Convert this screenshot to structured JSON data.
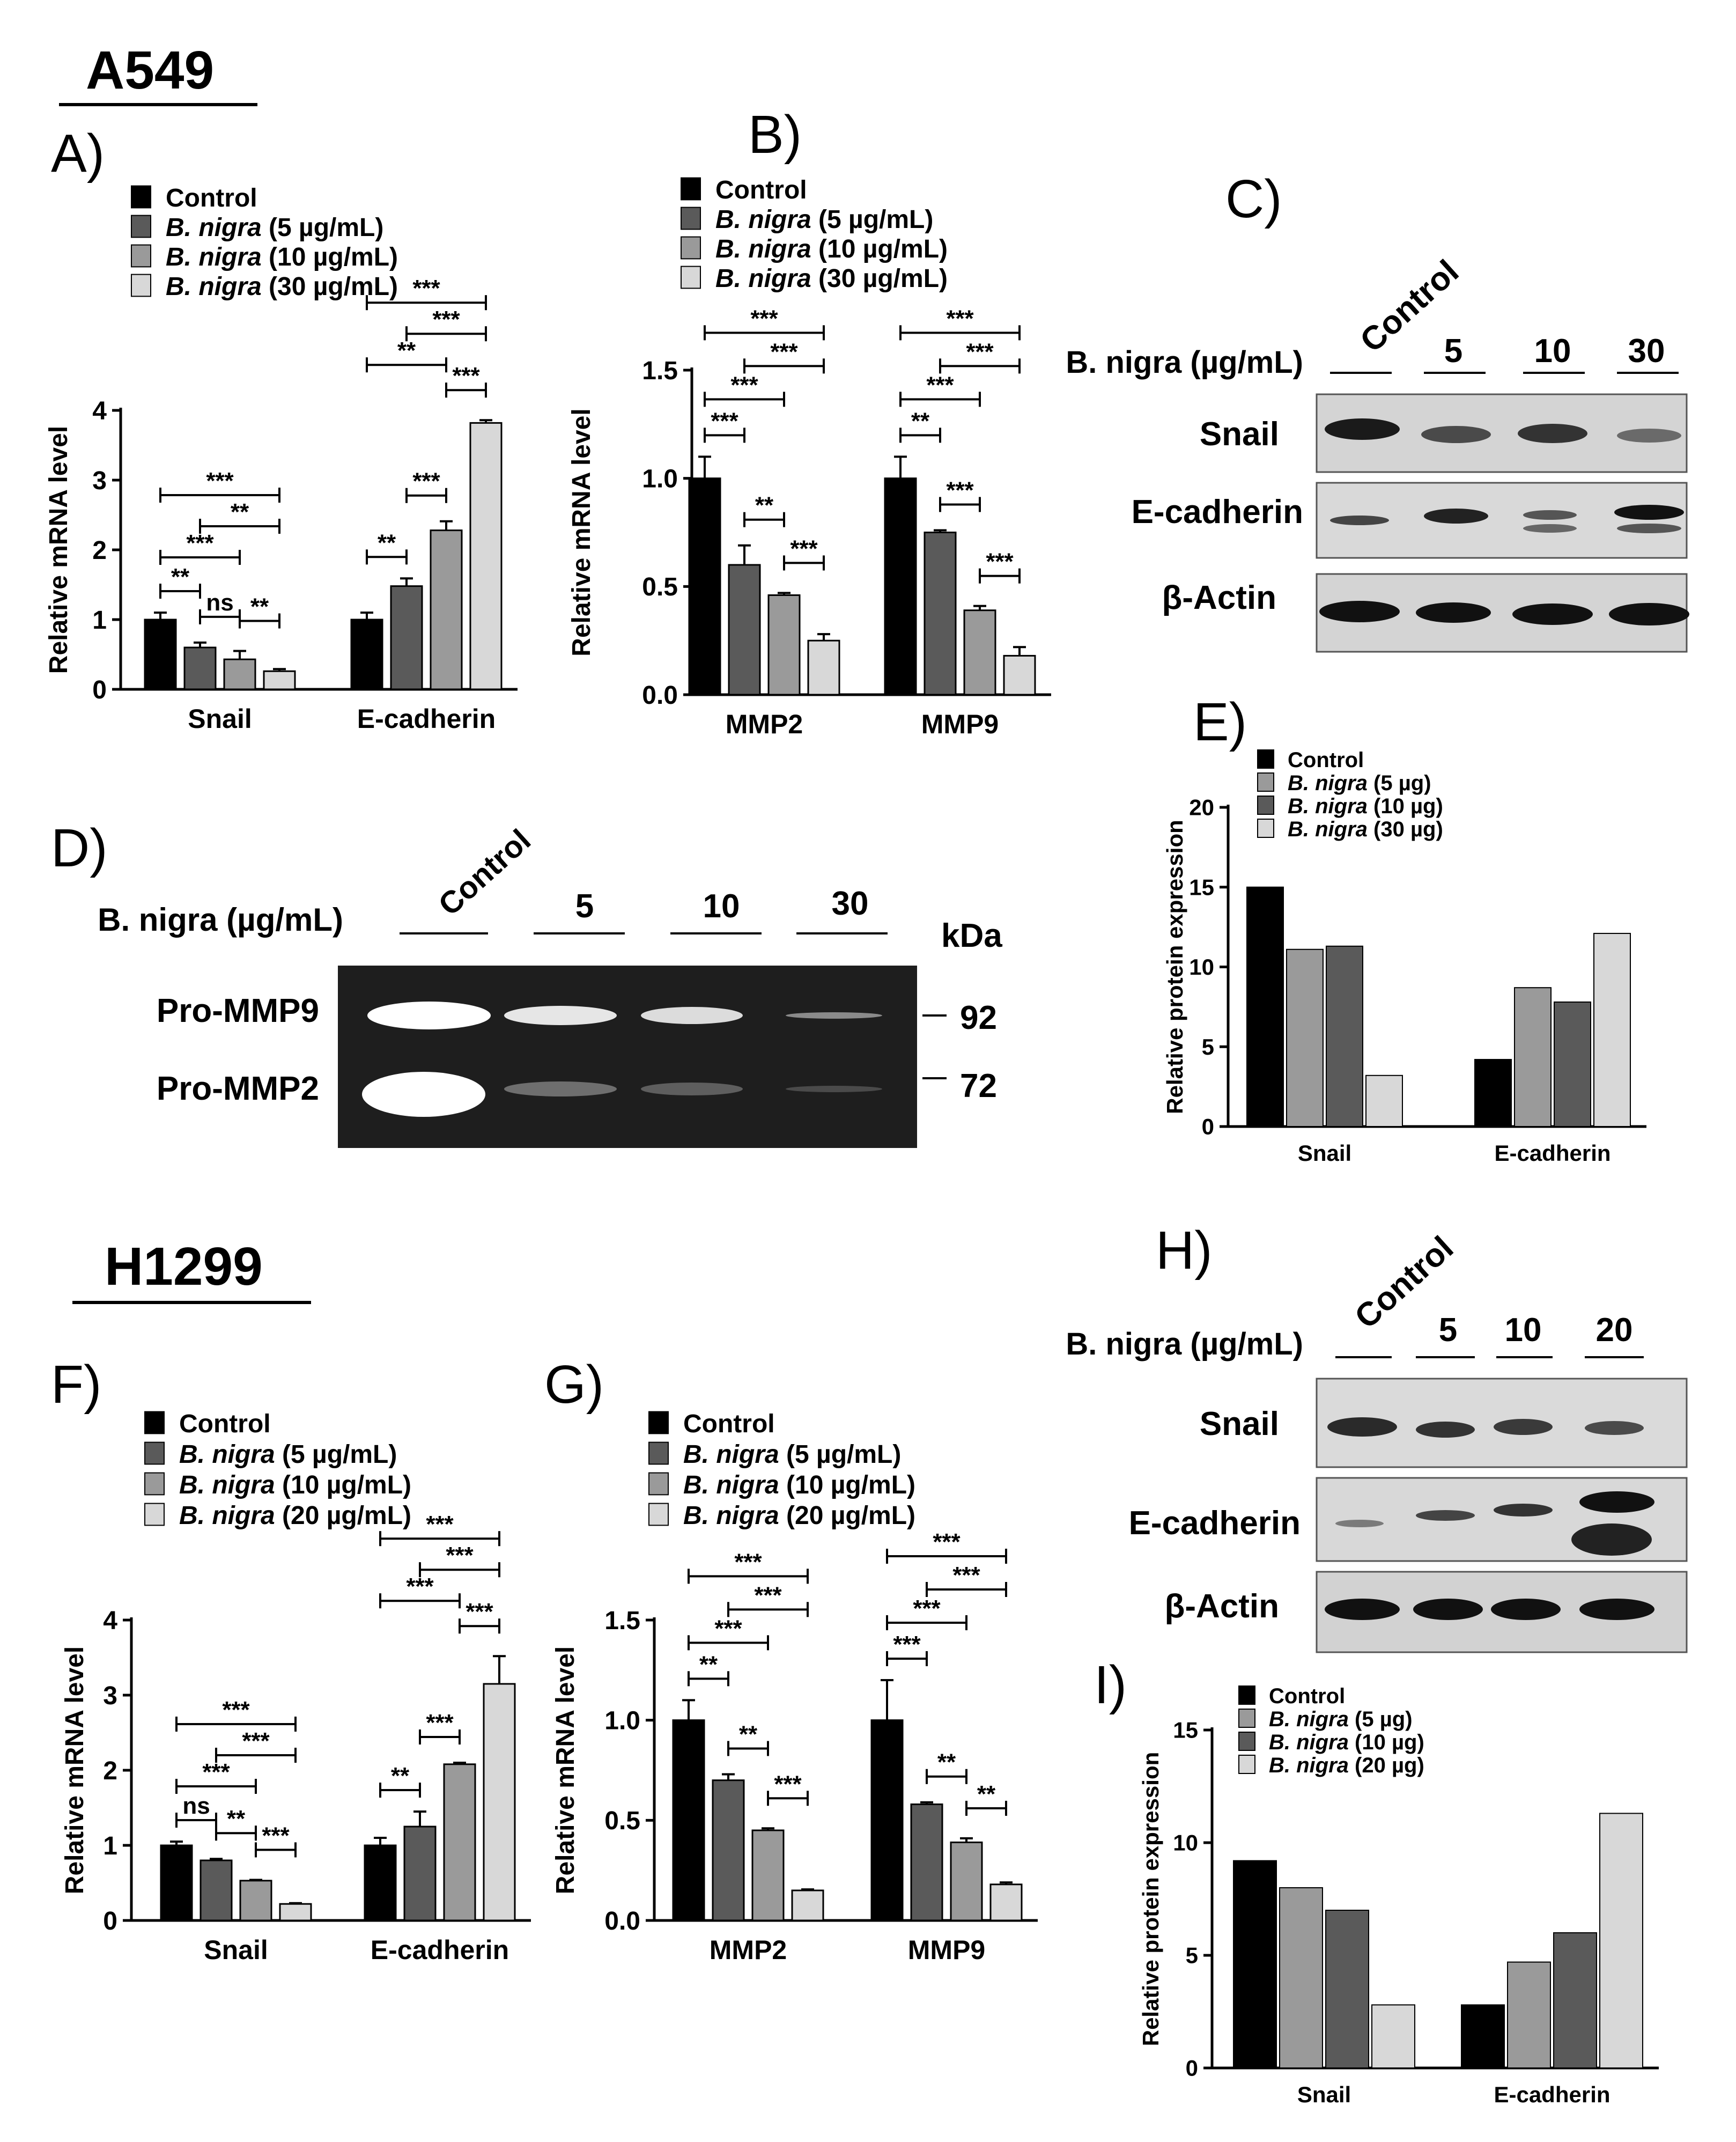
{
  "cell_line_headers": [
    "A549",
    "H1299"
  ],
  "panel_letters": [
    "A)",
    "B)",
    "C)",
    "D)",
    "E)",
    "F)",
    "G)",
    "H)",
    "I)"
  ],
  "legend_prefix": "B. nigra",
  "blot_treatment_label": "B. nigra (µg/mL)",
  "blot_lane_labels_a549": [
    "Control",
    "5",
    "10",
    "30"
  ],
  "blot_lane_labels_h1299": [
    "Control",
    "5",
    "10",
    "20"
  ],
  "blot_row_labels": [
    "Snail",
    "E-cadherin",
    "β-Actin"
  ],
  "zymo_row_labels": [
    "Pro-MMP9",
    "Pro-MMP2"
  ],
  "zymo_kda_header": "kDa",
  "zymo_kda_values": [
    "92",
    "72"
  ],
  "colors": {
    "control": "#000000",
    "dose1": "#5a5a5a",
    "dose2": "#9a9a9a",
    "dose3": "#d8d8d8",
    "blot_bg": "#d6d6d6",
    "zymo_bg": "#1e1e1e"
  },
  "chart_data": [
    {
      "id": "A",
      "type": "bar",
      "categories": [
        "Snail",
        "E-cadherin"
      ],
      "ylabel": "Relative mRNA level",
      "ylim": [
        0,
        4
      ],
      "yticks": [
        "0",
        "1",
        "2",
        "3",
        "4"
      ],
      "series": [
        {
          "name": "Control",
          "values": [
            1.0,
            1.0
          ],
          "errors": [
            0.1,
            0.1
          ]
        },
        {
          "name": "(5 µg/mL)",
          "values": [
            0.6,
            1.48
          ],
          "errors": [
            0.07,
            0.11
          ]
        },
        {
          "name": "(10 µg/mL)",
          "values": [
            0.43,
            2.28
          ],
          "errors": [
            0.12,
            0.13
          ]
        },
        {
          "name": "(30 µg/mL)",
          "values": [
            0.26,
            3.82
          ],
          "errors": [
            0.03,
            0.04
          ]
        }
      ],
      "significance": [
        "**",
        "***",
        "***",
        "ns",
        "**",
        "**",
        "**",
        "**",
        "***",
        "***",
        "***",
        "***"
      ]
    },
    {
      "id": "B",
      "type": "bar",
      "categories": [
        "MMP2",
        "MMP9"
      ],
      "ylabel": "Relative mRNA level",
      "ylim": [
        0,
        1.5
      ],
      "yticks": [
        "0.0",
        "0.5",
        "1.0",
        "1.5"
      ],
      "series": [
        {
          "name": "Control",
          "values": [
            1.0,
            1.0
          ],
          "errors": [
            0.1,
            0.1
          ]
        },
        {
          "name": "(5 µg/mL)",
          "values": [
            0.6,
            0.75
          ],
          "errors": [
            0.09,
            0.01
          ]
        },
        {
          "name": "(10 µg/mL)",
          "values": [
            0.46,
            0.39
          ],
          "errors": [
            0.01,
            0.02
          ]
        },
        {
          "name": "(30 µg/mL)",
          "values": [
            0.25,
            0.18
          ],
          "errors": [
            0.03,
            0.04
          ]
        }
      ],
      "significance": [
        "***",
        "***",
        "***",
        "**",
        "***",
        "***",
        "**",
        "***",
        "***",
        "***",
        "***",
        "***"
      ]
    },
    {
      "id": "E",
      "type": "bar",
      "categories": [
        "Snail",
        "E-cadherin"
      ],
      "ylabel": "Relative protein expression",
      "ylim": [
        0,
        20
      ],
      "yticks": [
        "0",
        "5",
        "10",
        "15",
        "20"
      ],
      "series": [
        {
          "name": "Control",
          "values": [
            15.0,
            4.2
          ]
        },
        {
          "name": "(5 µg)",
          "values": [
            11.1,
            8.7
          ]
        },
        {
          "name": "(10 µg)",
          "values": [
            11.3,
            7.8
          ]
        },
        {
          "name": "(30 µg)",
          "values": [
            3.2,
            12.1
          ]
        }
      ]
    },
    {
      "id": "F",
      "type": "bar",
      "categories": [
        "Snail",
        "E-cadherin"
      ],
      "ylabel": "Relative mRNA level",
      "ylim": [
        0,
        4
      ],
      "yticks": [
        "0",
        "1",
        "2",
        "3",
        "4"
      ],
      "series": [
        {
          "name": "Control",
          "values": [
            1.0,
            1.0
          ],
          "errors": [
            0.05,
            0.1
          ]
        },
        {
          "name": "(5 µg/mL)",
          "values": [
            0.8,
            1.25
          ],
          "errors": [
            0.02,
            0.2
          ]
        },
        {
          "name": "(10 µg/mL)",
          "values": [
            0.53,
            2.08
          ],
          "errors": [
            0.01,
            0.02
          ]
        },
        {
          "name": "(20 µg/mL)",
          "values": [
            0.22,
            3.15
          ],
          "errors": [
            0.01,
            0.37
          ]
        }
      ],
      "significance": [
        "ns",
        "***",
        "***",
        "**",
        "***",
        "***",
        "**",
        "***",
        "***",
        "***",
        "***",
        "***"
      ]
    },
    {
      "id": "G",
      "type": "bar",
      "categories": [
        "MMP2",
        "MMP9"
      ],
      "ylabel": "Relative mRNA level",
      "ylim": [
        0,
        1.5
      ],
      "yticks": [
        "0.0",
        "0.5",
        "1.0",
        "1.5"
      ],
      "series": [
        {
          "name": "Control",
          "values": [
            1.0,
            1.0
          ],
          "errors": [
            0.1,
            0.2
          ]
        },
        {
          "name": "(5 µg/mL)",
          "values": [
            0.7,
            0.58
          ],
          "errors": [
            0.03,
            0.01
          ]
        },
        {
          "name": "(10 µg/mL)",
          "values": [
            0.45,
            0.39
          ],
          "errors": [
            0.01,
            0.02
          ]
        },
        {
          "name": "(20 µg/mL)",
          "values": [
            0.15,
            0.18
          ],
          "errors": [
            0.005,
            0.01
          ]
        }
      ],
      "significance": [
        "**",
        "***",
        "***",
        "**",
        "***",
        "***",
        "***",
        "***",
        "***",
        "**",
        "***",
        "**"
      ]
    },
    {
      "id": "I",
      "type": "bar",
      "categories": [
        "Snail",
        "E-cadherin"
      ],
      "ylabel": "Relative protein expression",
      "ylim": [
        0,
        15
      ],
      "yticks": [
        "0",
        "5",
        "10",
        "15"
      ],
      "series": [
        {
          "name": "Control",
          "values": [
            9.2,
            2.8
          ]
        },
        {
          "name": "(5 µg)",
          "values": [
            8.0,
            4.7
          ]
        },
        {
          "name": "(10 µg)",
          "values": [
            7.0,
            6.0
          ]
        },
        {
          "name": "(20 µg)",
          "values": [
            2.8,
            11.3
          ]
        }
      ]
    }
  ]
}
